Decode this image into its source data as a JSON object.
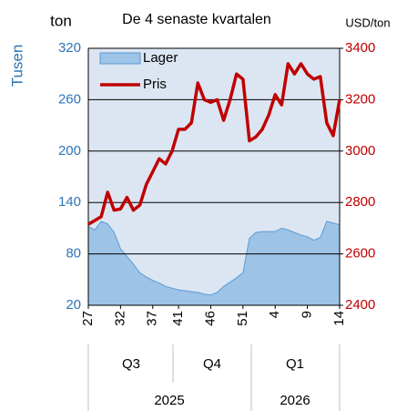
{
  "chart_data": {
    "type": "combo",
    "title": "De 4 senaste kvartalen",
    "y_unit": "ton",
    "y_label": "Tusen",
    "y2_label": "USD/ton",
    "categories": [
      "27",
      null,
      null,
      null,
      null,
      "32",
      null,
      null,
      null,
      null,
      "37",
      null,
      null,
      null,
      "41",
      null,
      null,
      null,
      null,
      "46",
      null,
      null,
      null,
      null,
      "51",
      null,
      null,
      null,
      null,
      "4",
      null,
      null,
      null,
      null,
      "9",
      null,
      null,
      null,
      null,
      "14"
    ],
    "quarters": [
      "Q3",
      "Q4",
      "Q1"
    ],
    "years": [
      "2025",
      "2026"
    ],
    "series": [
      {
        "name": "Lager",
        "kind": "area",
        "color": "#9dc3e6",
        "edge": "#5b9bd5",
        "values": [
          112,
          108,
          118,
          115,
          105,
          86,
          77,
          68,
          58,
          53,
          49,
          46,
          42,
          40,
          38,
          37,
          36,
          35,
          33,
          32,
          35,
          42,
          47,
          52,
          58,
          98,
          105,
          106,
          106,
          106,
          110,
          108,
          105,
          102,
          100,
          96,
          99,
          118,
          116,
          114
        ]
      },
      {
        "name": "Pris",
        "kind": "line",
        "axis": "y2",
        "color": "#c00000",
        "values": [
          2715,
          2730,
          2745,
          2840,
          2770,
          2775,
          2820,
          2770,
          2790,
          2870,
          2920,
          2970,
          2950,
          3000,
          3085,
          3085,
          3110,
          3265,
          3200,
          3190,
          3200,
          3120,
          3200,
          3300,
          3280,
          3040,
          3055,
          3085,
          3140,
          3220,
          3180,
          3340,
          3300,
          3340,
          3300,
          3280,
          3290,
          3110,
          3060,
          3200
        ]
      }
    ],
    "ylim": [
      20,
      320
    ],
    "yticks": [
      20,
      80,
      140,
      200,
      260,
      320
    ],
    "y2lim": [
      2400,
      3400
    ],
    "y2ticks": [
      2400,
      2600,
      2800,
      3000,
      3200,
      3400
    ],
    "grid": true,
    "legend": "upper left",
    "background": "#dce6f2"
  }
}
